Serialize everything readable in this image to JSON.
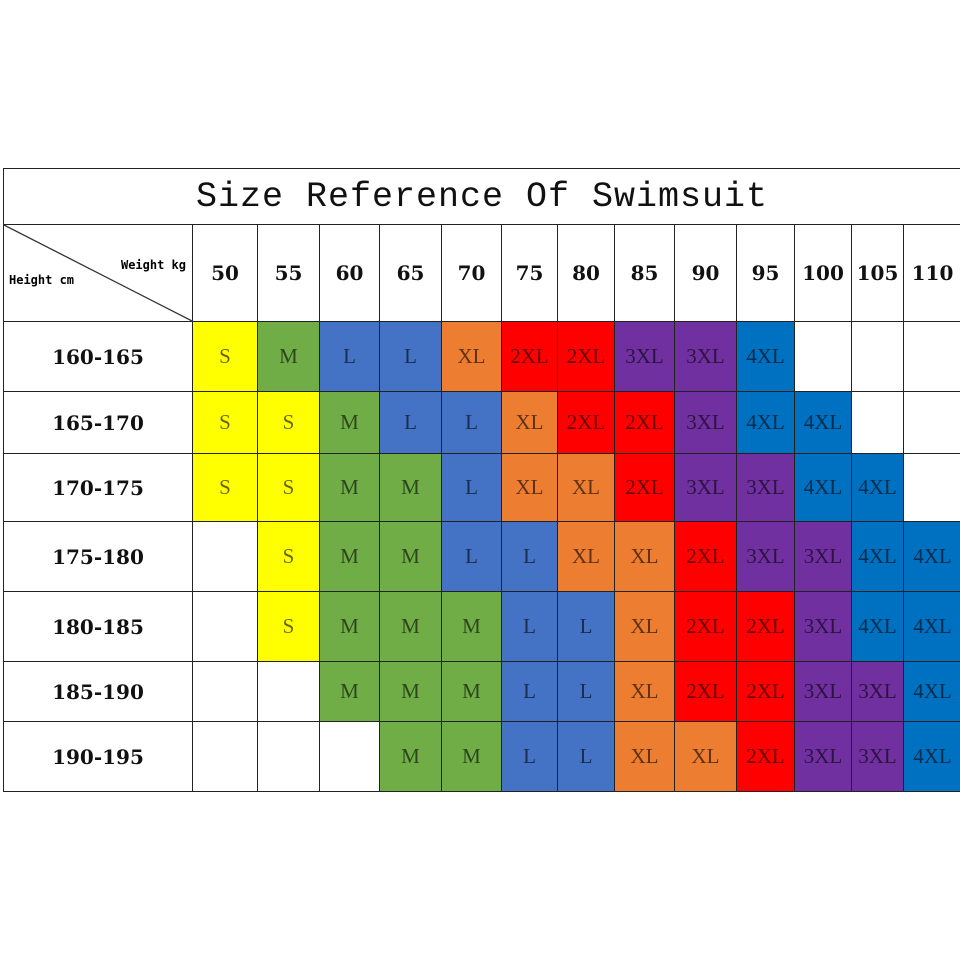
{
  "chart_data": {
    "type": "table",
    "title": "Size Reference Of Swimsuit",
    "corner": {
      "column_label": "Weight kg",
      "row_label": "Height cm"
    },
    "columns": [
      "50",
      "55",
      "60",
      "65",
      "70",
      "75",
      "80",
      "85",
      "90",
      "95",
      "100",
      "105",
      "110"
    ],
    "rows": [
      {
        "height": "160-165",
        "sizes": [
          "S",
          "M",
          "L",
          "L",
          "XL",
          "2XL",
          "2XL",
          "3XL",
          "3XL",
          "4XL",
          "",
          "",
          ""
        ]
      },
      {
        "height": "165-170",
        "sizes": [
          "S",
          "S",
          "M",
          "L",
          "L",
          "XL",
          "2XL",
          "2XL",
          "3XL",
          "4XL",
          "4XL",
          "",
          ""
        ]
      },
      {
        "height": "170-175",
        "sizes": [
          "S",
          "S",
          "M",
          "M",
          "L",
          "XL",
          "XL",
          "2XL",
          "3XL",
          "3XL",
          "4XL",
          "4XL",
          ""
        ]
      },
      {
        "height": "175-180",
        "sizes": [
          "",
          "S",
          "M",
          "M",
          "L",
          "L",
          "XL",
          "XL",
          "2XL",
          "3XL",
          "3XL",
          "4XL",
          "4XL"
        ]
      },
      {
        "height": "180-185",
        "sizes": [
          "",
          "S",
          "M",
          "M",
          "M",
          "L",
          "L",
          "XL",
          "2XL",
          "2XL",
          "3XL",
          "4XL",
          "4XL"
        ]
      },
      {
        "height": "185-190",
        "sizes": [
          "",
          "",
          "M",
          "M",
          "M",
          "L",
          "L",
          "XL",
          "2XL",
          "2XL",
          "3XL",
          "3XL",
          "4XL"
        ]
      },
      {
        "height": "190-195",
        "sizes": [
          "",
          "",
          "",
          "M",
          "M",
          "L",
          "L",
          "XL",
          "XL",
          "2XL",
          "3XL",
          "3XL",
          "4XL"
        ]
      }
    ],
    "size_colors": {
      "S": "#ffff00",
      "M": "#70ad47",
      "L": "#4472c4",
      "XL": "#ed7d31",
      "2XL": "#ff0000",
      "3XL": "#7030a0",
      "4XL": "#0070c0"
    }
  }
}
